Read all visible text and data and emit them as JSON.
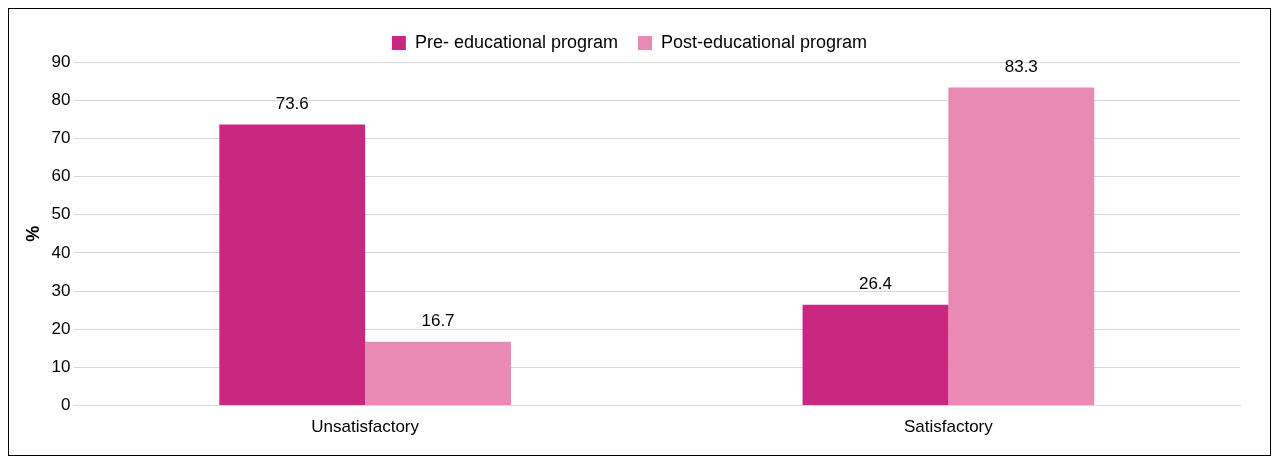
{
  "chart_data": {
    "type": "bar",
    "ylabel": "%",
    "categories": [
      "Unsatisfactory",
      "Satisfactory"
    ],
    "series": [
      {
        "name": "Pre- educational program",
        "color": "#c8287f",
        "values": [
          73.6,
          26.4
        ]
      },
      {
        "name": "Post-educational program",
        "color": "#e98ab5",
        "values": [
          16.7,
          83.3
        ]
      }
    ],
    "ylim": [
      0,
      90
    ],
    "yticks": [
      0,
      10,
      20,
      30,
      40,
      50,
      60,
      70,
      80,
      90
    ],
    "grid": "y",
    "legend": "top",
    "data_labels": true
  }
}
